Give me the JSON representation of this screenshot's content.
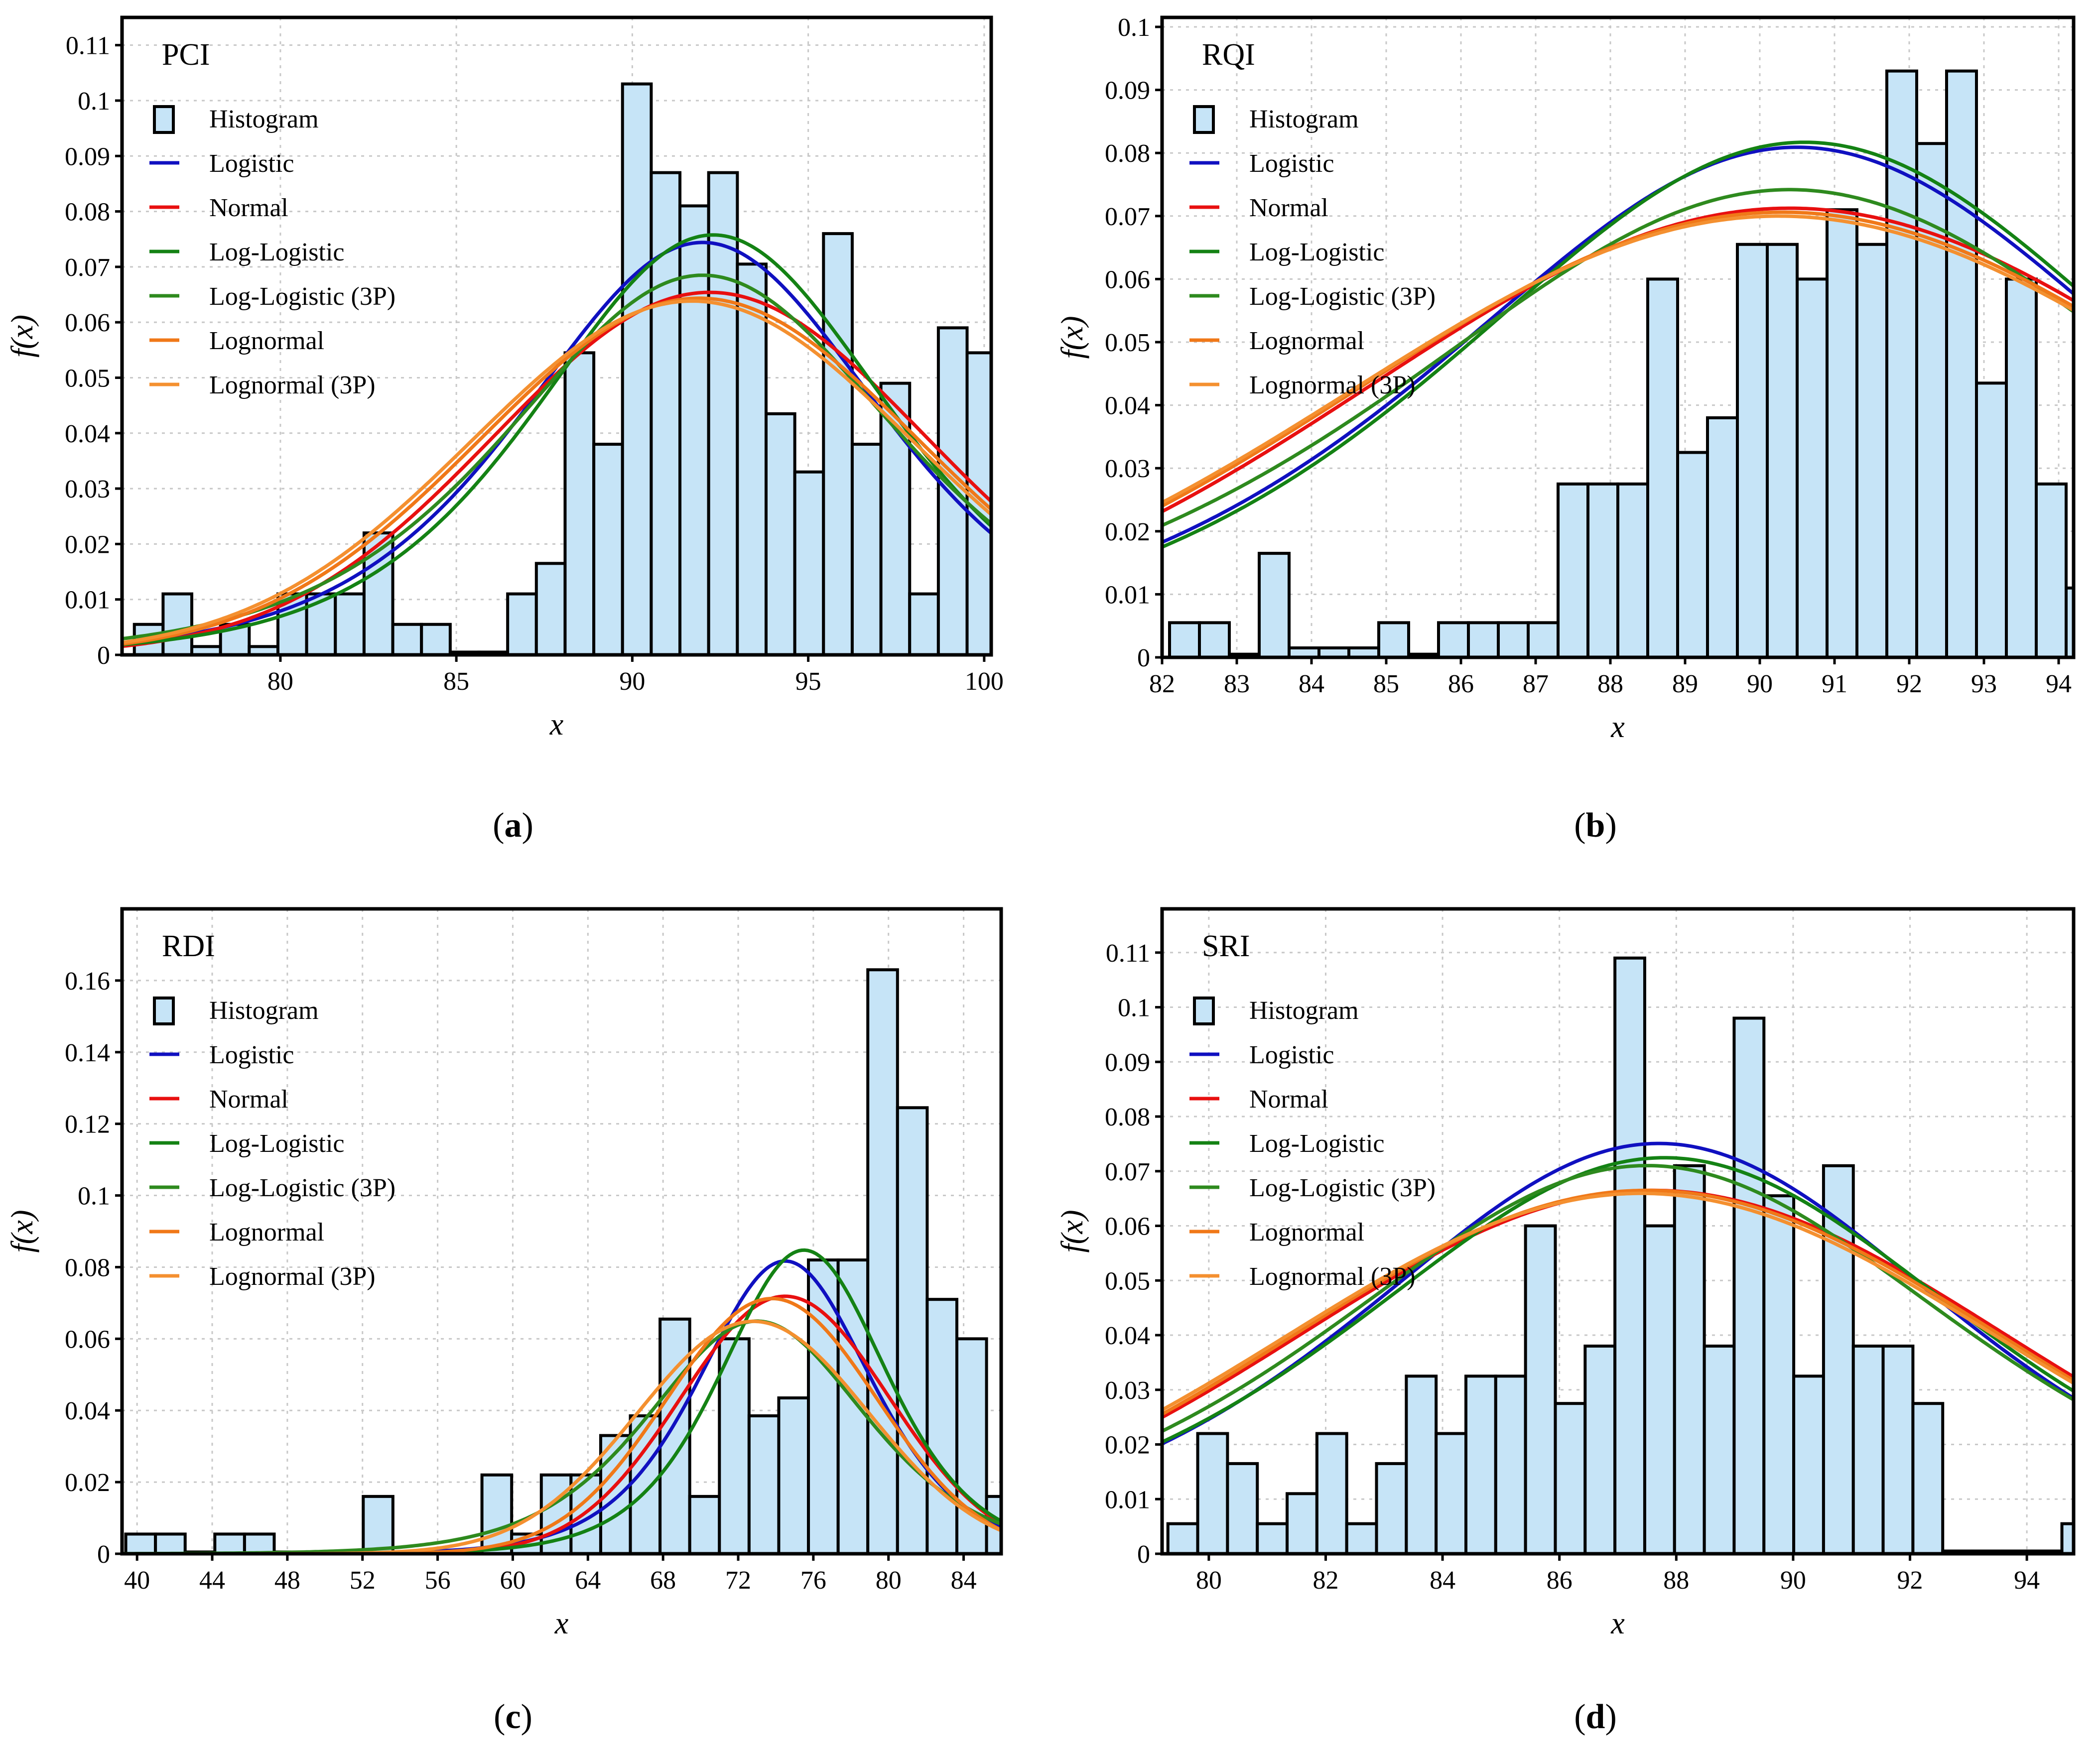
{
  "figure": {
    "curve_colors": {
      "Logistic": "#1010c0",
      "Normal": "#e81010",
      "Log-Logistic": "#148214",
      "Log-Logistic (3P)": "#2e8a1e",
      "Lognormal": "#f07818",
      "Lognormal (3P)": "#f49030"
    },
    "histogram_color": "#c6e4f7"
  },
  "chart_data": [
    {
      "type": "bar",
      "caption": "(a)",
      "caption_letter": "a",
      "label": "PCI",
      "xlabel": "x",
      "ylabel": "f(x)",
      "xlim": [
        75.5,
        100.2
      ],
      "ylim": [
        0,
        0.115
      ],
      "xticks": [
        80,
        85,
        90,
        95,
        100
      ],
      "xtick_labels": [
        "80",
        "85",
        "90",
        "95",
        "100"
      ],
      "yticks": [
        0,
        0.01,
        0.02,
        0.03,
        0.04,
        0.05,
        0.06,
        0.07,
        0.08,
        0.09,
        0.1,
        0.11
      ],
      "ytick_labels": [
        "0",
        "0.01",
        "0.02",
        "0.03",
        "0.04",
        "0.05",
        "0.06",
        "0.07",
        "0.08",
        "0.09",
        "0.1",
        "0.11"
      ],
      "bins": {
        "start": 75.85,
        "width": 0.816,
        "values": [
          0.0055,
          0.011,
          0.0015,
          0.0055,
          0.0015,
          0.011,
          0.011,
          0.011,
          0.022,
          0.0055,
          0.0055,
          0.0005,
          0.0005,
          0.011,
          0.0165,
          0.0545,
          0.038,
          0.103,
          0.087,
          0.081,
          0.087,
          0.0705,
          0.0435,
          0.033,
          0.076,
          0.038,
          0.049,
          0.011,
          0.059,
          0.0545
        ]
      },
      "curves": [
        {
          "name": "Logistic",
          "type": "logistic",
          "mu": 92.0,
          "s": 3.36
        },
        {
          "name": "Normal",
          "type": "normal",
          "mu": 92.2,
          "sigma": 6.1
        },
        {
          "name": "Log-Logistic",
          "type": "logistic",
          "mu": 92.3,
          "s": 3.3
        },
        {
          "name": "Log-Logistic (3P)",
          "type": "logistic",
          "mu": 92.0,
          "s": 3.65
        },
        {
          "name": "Lognormal",
          "type": "normal",
          "mu": 91.9,
          "sigma": 6.2
        },
        {
          "name": "Lognormal (3P)",
          "type": "normal",
          "mu": 91.7,
          "sigma": 6.25
        }
      ],
      "legend": [
        "Histogram",
        "Logistic",
        "Normal",
        "Log-Logistic",
        "Log-Logistic (3P)",
        "Lognormal",
        "Lognormal (3P)"
      ]
    },
    {
      "type": "bar",
      "caption": "(b)",
      "caption_letter": "b",
      "label": "RQI",
      "xlabel": "x",
      "ylabel": "f(x)",
      "xlim": [
        82.0,
        94.2
      ],
      "ylim": [
        0,
        0.1015
      ],
      "xticks": [
        82,
        83,
        84,
        85,
        86,
        87,
        88,
        89,
        90,
        91,
        92,
        93,
        94
      ],
      "xtick_labels": [
        "82",
        "83",
        "84",
        "85",
        "86",
        "87",
        "88",
        "89",
        "90",
        "91",
        "92",
        "93",
        "94"
      ],
      "yticks": [
        0,
        0.01,
        0.02,
        0.03,
        0.04,
        0.05,
        0.06,
        0.07,
        0.08,
        0.09,
        0.1
      ],
      "ytick_labels": [
        "0",
        "0.01",
        "0.02",
        "0.03",
        "0.04",
        "0.05",
        "0.06",
        "0.07",
        "0.08",
        "0.09",
        "0.1"
      ],
      "bins": {
        "start": 82.1,
        "width": 0.4,
        "values": [
          0.0055,
          0.0055,
          0.0005,
          0.0165,
          0.0015,
          0.0015,
          0.0015,
          0.0055,
          0.0005,
          0.0055,
          0.0055,
          0.0055,
          0.0055,
          0.0275,
          0.0275,
          0.0275,
          0.06,
          0.0325,
          0.038,
          0.0655,
          0.0655,
          0.06,
          0.071,
          0.0655,
          0.093,
          0.0815,
          0.093,
          0.0435,
          0.06,
          0.0275,
          0.011
        ]
      },
      "curves": [
        {
          "name": "Logistic",
          "type": "logistic",
          "mu": 90.5,
          "s": 3.09
        },
        {
          "name": "Normal",
          "type": "normal",
          "mu": 90.4,
          "sigma": 5.6
        },
        {
          "name": "Log-Logistic",
          "type": "logistic",
          "mu": 90.6,
          "s": 3.06
        },
        {
          "name": "Log-Logistic (3P)",
          "type": "logistic",
          "mu": 90.4,
          "s": 3.37
        },
        {
          "name": "Lognormal",
          "type": "normal",
          "mu": 90.3,
          "sigma": 5.65
        },
        {
          "name": "Lognormal (3P)",
          "type": "normal",
          "mu": 90.25,
          "sigma": 5.7
        }
      ],
      "legend": [
        "Histogram",
        "Logistic",
        "Normal",
        "Log-Logistic",
        "Log-Logistic (3P)",
        "Lognormal",
        "Lognormal (3P)"
      ]
    },
    {
      "type": "bar",
      "caption": "(c)",
      "caption_letter": "c",
      "label": "RDI",
      "xlabel": "x",
      "ylabel": "f(x)",
      "xlim": [
        39.2,
        86.0
      ],
      "ylim": [
        0,
        0.18
      ],
      "xticks": [
        40,
        44,
        48,
        52,
        56,
        60,
        64,
        68,
        72,
        76,
        80,
        84
      ],
      "xtick_labels": [
        "40",
        "44",
        "48",
        "52",
        "56",
        "60",
        "64",
        "68",
        "72",
        "76",
        "80",
        "84"
      ],
      "yticks": [
        0,
        0.02,
        0.04,
        0.06,
        0.08,
        0.1,
        0.12,
        0.14,
        0.16
      ],
      "ytick_labels": [
        "0",
        "0.02",
        "0.04",
        "0.06",
        "0.08",
        "0.1",
        "0.12",
        "0.14",
        "0.16"
      ],
      "bins": {
        "start": 39.4,
        "width": 1.58,
        "values": [
          0.0055,
          0.0055,
          0.0005,
          0.0055,
          0.0055,
          0.0005,
          0.0005,
          0.0005,
          0.016,
          0.0005,
          0.0005,
          0.0005,
          0.022,
          0.0055,
          0.022,
          0.022,
          0.033,
          0.0385,
          0.0655,
          0.016,
          0.06,
          0.0385,
          0.0435,
          0.082,
          0.082,
          0.163,
          0.1245,
          0.071,
          0.06,
          0.016
        ]
      },
      "curves": [
        {
          "name": "Logistic",
          "type": "logistic",
          "mu": 74.5,
          "s": 3.06
        },
        {
          "name": "Normal",
          "type": "normal",
          "mu": 74.5,
          "sigma": 5.55
        },
        {
          "name": "Log-Logistic",
          "type": "logistic",
          "mu": 75.5,
          "s": 2.95
        },
        {
          "name": "Log-Logistic (3P)",
          "type": "logistic",
          "mu": 73.0,
          "s": 3.85
        },
        {
          "name": "Lognormal",
          "type": "normal",
          "mu": 73.8,
          "sigma": 5.6
        },
        {
          "name": "Lognormal (3P)",
          "type": "normal",
          "mu": 72.8,
          "sigma": 6.15
        }
      ],
      "legend": [
        "Histogram",
        "Logistic",
        "Normal",
        "Log-Logistic",
        "Log-Logistic (3P)",
        "Lognormal",
        "Lognormal (3P)"
      ]
    },
    {
      "type": "bar",
      "caption": "(d)",
      "caption_letter": "d",
      "label": "SRI",
      "xlabel": "x",
      "ylabel": "f(x)",
      "xlim": [
        79.2,
        94.8
      ],
      "ylim": [
        0,
        0.118
      ],
      "xticks": [
        80,
        82,
        84,
        86,
        88,
        90,
        92,
        94
      ],
      "xtick_labels": [
        "80",
        "82",
        "84",
        "86",
        "88",
        "90",
        "92",
        "94"
      ],
      "yticks": [
        0,
        0.01,
        0.02,
        0.03,
        0.04,
        0.05,
        0.06,
        0.07,
        0.08,
        0.09,
        0.1,
        0.11
      ],
      "ytick_labels": [
        "0",
        "0.01",
        "0.02",
        "0.03",
        "0.04",
        "0.05",
        "0.06",
        "0.07",
        "0.08",
        "0.09",
        "0.1",
        "0.11"
      ],
      "bins": {
        "start": 79.3,
        "width": 0.51,
        "values": [
          0.0055,
          0.022,
          0.0165,
          0.0055,
          0.011,
          0.022,
          0.0055,
          0.0165,
          0.0325,
          0.022,
          0.0325,
          0.0325,
          0.06,
          0.0275,
          0.038,
          0.109,
          0.06,
          0.071,
          0.038,
          0.098,
          0.0655,
          0.0325,
          0.071,
          0.038,
          0.038,
          0.0275,
          0.0005,
          0.0005,
          0.0005,
          0.0005,
          0.0055
        ]
      },
      "curves": [
        {
          "name": "Logistic",
          "type": "logistic",
          "mu": 87.7,
          "s": 3.33
        },
        {
          "name": "Normal",
          "type": "normal",
          "mu": 87.6,
          "sigma": 6.0
        },
        {
          "name": "Log-Logistic",
          "type": "logistic",
          "mu": 87.8,
          "s": 3.45
        },
        {
          "name": "Log-Logistic (3P)",
          "type": "logistic",
          "mu": 87.5,
          "s": 3.52
        },
        {
          "name": "Lognormal",
          "type": "normal",
          "mu": 87.5,
          "sigma": 6.0
        },
        {
          "name": "Lognormal (3P)",
          "type": "normal",
          "mu": 87.4,
          "sigma": 6.05
        }
      ],
      "legend": [
        "Histogram",
        "Logistic",
        "Normal",
        "Log-Logistic",
        "Log-Logistic (3P)",
        "Lognormal",
        "Lognormal (3P)"
      ]
    }
  ]
}
